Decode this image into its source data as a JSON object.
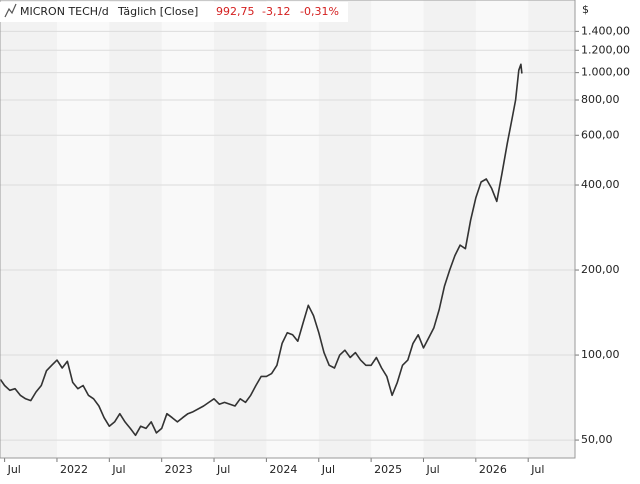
{
  "chart_data": {
    "type": "line",
    "title": "MICRON TECH/d",
    "subtitle": "Täglich [Close]",
    "last": "992,75",
    "change": "-3,12",
    "change_pct": "-0,31%",
    "y_unit": "$",
    "log_scale": true,
    "grid": true,
    "xlim": [
      2021.456,
      2026.947
    ],
    "xticks": [
      {
        "value": 2021.5,
        "label": "Jul"
      },
      {
        "value": 2022,
        "label": "2022"
      },
      {
        "value": 2022.5,
        "label": "Jul"
      },
      {
        "value": 2023,
        "label": "2023"
      },
      {
        "value": 2023.5,
        "label": "Jul"
      },
      {
        "value": 2024,
        "label": "2024"
      },
      {
        "value": 2024.5,
        "label": "Jul"
      },
      {
        "value": 2025,
        "label": "2025"
      },
      {
        "value": 2025.5,
        "label": "Jul"
      },
      {
        "value": 2026,
        "label": "2026"
      },
      {
        "value": 2026.5,
        "label": "Jul"
      }
    ],
    "ylim": [
      43.2,
      1808
    ],
    "yticks": [
      {
        "value": 50,
        "label": "50,00"
      },
      {
        "value": 100,
        "label": "100,00"
      },
      {
        "value": 200,
        "label": "200,00"
      },
      {
        "value": 400,
        "label": "400,00"
      },
      {
        "value": 600,
        "label": "600,00"
      },
      {
        "value": 800,
        "label": "800,00"
      },
      {
        "value": 1000,
        "label": "1.000,00"
      },
      {
        "value": 1200,
        "label": "1.200,00"
      },
      {
        "value": 1400,
        "label": "1.400,00"
      }
    ],
    "series": [
      {
        "name": "MICRON TECH",
        "color": "#333333",
        "x": [
          2021.46,
          2021.5,
          2021.55,
          2021.6,
          2021.65,
          2021.7,
          2021.75,
          2021.8,
          2021.85,
          2021.9,
          2021.95,
          2022.0,
          2022.05,
          2022.1,
          2022.15,
          2022.2,
          2022.25,
          2022.3,
          2022.35,
          2022.4,
          2022.45,
          2022.5,
          2022.55,
          2022.6,
          2022.65,
          2022.7,
          2022.75,
          2022.8,
          2022.85,
          2022.9,
          2022.95,
          2023.0,
          2023.05,
          2023.1,
          2023.15,
          2023.2,
          2023.25,
          2023.3,
          2023.4,
          2023.45,
          2023.5,
          2023.55,
          2023.6,
          2023.7,
          2023.75,
          2023.8,
          2023.85,
          2023.9,
          2023.95,
          2024.0,
          2024.05,
          2024.1,
          2024.15,
          2024.2,
          2024.25,
          2024.3,
          2024.35,
          2024.4,
          2024.45,
          2024.5,
          2024.55,
          2024.6,
          2024.65,
          2024.7,
          2024.75,
          2024.8,
          2024.85,
          2024.9,
          2024.95,
          2025.0,
          2025.05,
          2025.1,
          2025.15,
          2025.2,
          2025.25,
          2025.3,
          2025.35,
          2025.4,
          2025.45,
          2025.5,
          2025.55,
          2025.6,
          2025.65,
          2025.7,
          2025.75,
          2025.8,
          2025.85,
          2025.9,
          2025.95,
          2026.0,
          2026.05,
          2026.1,
          2026.15,
          2026.2,
          2026.25,
          2026.3,
          2026.35,
          2026.38,
          2026.41,
          2026.43,
          2026.44
        ],
        "values": [
          82,
          78,
          75,
          76,
          72,
          70,
          69,
          74,
          78,
          88,
          92,
          96,
          90,
          95,
          80,
          76,
          78,
          72,
          70,
          66,
          60,
          56,
          58,
          62,
          58,
          55,
          52,
          56,
          55,
          58,
          53,
          55,
          62,
          60,
          58,
          60,
          62,
          63,
          66,
          68,
          70,
          67,
          68,
          66,
          70,
          68,
          72,
          78,
          84,
          84,
          86,
          92,
          110,
          120,
          118,
          112,
          130,
          150,
          138,
          120,
          102,
          92,
          90,
          100,
          104,
          98,
          102,
          96,
          92,
          92,
          98,
          90,
          84,
          72,
          80,
          92,
          96,
          110,
          118,
          106,
          115,
          125,
          145,
          175,
          200,
          225,
          245,
          238,
          300,
          360,
          410,
          420,
          390,
          350,
          440,
          560,
          700,
          800,
          1020,
          1070,
          992.75
        ]
      }
    ]
  }
}
